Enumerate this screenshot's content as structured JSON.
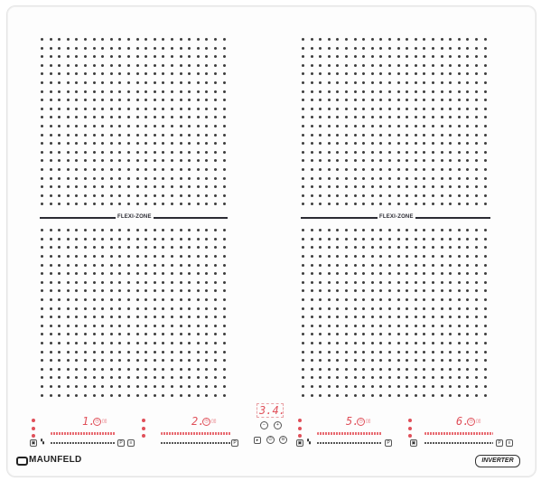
{
  "zones": [
    {
      "id": "left",
      "flexi_label": "FLEXI-ZONE"
    },
    {
      "id": "right",
      "flexi_label": "FLEXI-ZONE"
    }
  ],
  "controls": [
    {
      "id": "cz1",
      "level": "1."
    },
    {
      "id": "cz2",
      "level": "2."
    },
    {
      "id": "cz3",
      "level": "5."
    },
    {
      "id": "cz4",
      "level": "6."
    }
  ],
  "timer": {
    "display": "3.4."
  },
  "brand": {
    "name": "MAUNFELD"
  },
  "badge": {
    "text": "INVERTER"
  },
  "colors": {
    "accent_red": "#e0505a",
    "glass": "#fdfdfd",
    "dot": "#3d3d3d"
  },
  "icons": {
    "power": "power-icon",
    "lock": "lock-icon",
    "pause": "pause-icon",
    "plus": "plus-icon",
    "minus": "minus-icon",
    "boost": "boost-icon"
  }
}
